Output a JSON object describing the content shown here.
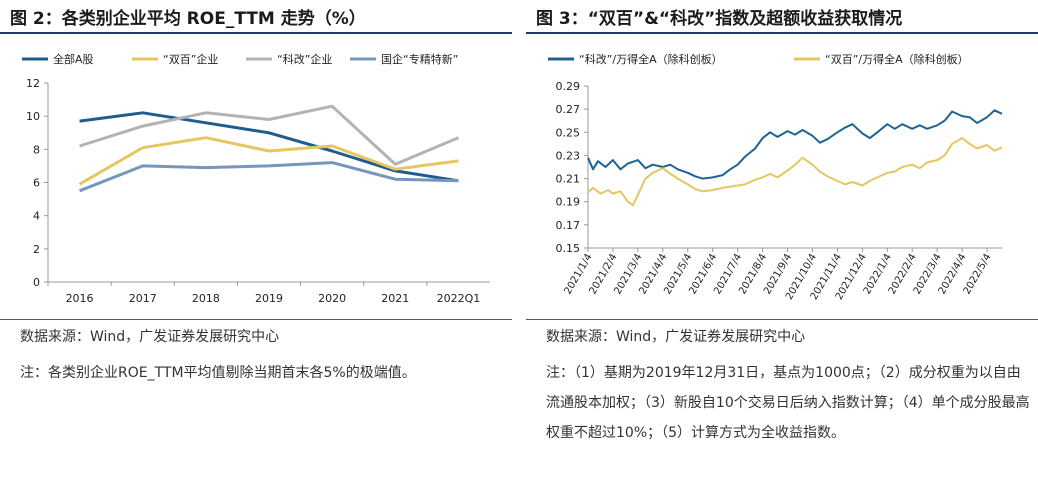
{
  "left": {
    "title": "图 2：各类别企业平均 ROE_TTM 走势（%）",
    "source": "数据来源：Wind，广发证券发展研究中心",
    "note": "注：各类别企业ROE_TTM平均值剔除当期首末各5%的极端值。"
  },
  "right": {
    "title": "图 3：“双百”&“科改”指数及超额收益获取情况",
    "source": "数据来源：Wind，广发证券发展研究中心",
    "note": "注：（1）基期为2019年12月31日，基点为1000点；（2）成分权重为以自由流通股本加权；（3）新股自10个交易日后纳入指数计算；（4）单个成分股最高权重不超过10%；（5）计算方式为全收益指数。"
  },
  "chart_data": [
    {
      "type": "line",
      "categories": [
        "2016",
        "2017",
        "2018",
        "2019",
        "2020",
        "2021",
        "2022Q1"
      ],
      "ylim": [
        0,
        12
      ],
      "yticks": [
        0,
        2,
        4,
        6,
        8,
        10,
        12
      ],
      "grid": false,
      "legend_position": "top",
      "series": [
        {
          "name": "全部A股",
          "color": "#1f5d8f",
          "values": [
            9.7,
            10.2,
            9.6,
            9.0,
            7.9,
            6.7,
            6.1
          ]
        },
        {
          "name": "“双百”企业",
          "color": "#e6c661",
          "values": [
            5.9,
            8.1,
            8.7,
            7.9,
            8.2,
            6.8,
            7.3
          ]
        },
        {
          "name": "“科改”企业",
          "color": "#b3b3b3",
          "values": [
            8.2,
            9.4,
            10.2,
            9.8,
            10.6,
            7.1,
            8.7
          ]
        },
        {
          "name": "国企“专精特新”",
          "color": "#7796bd",
          "values": [
            5.5,
            7.0,
            6.9,
            7.0,
            7.2,
            6.2,
            6.1
          ]
        }
      ]
    },
    {
      "type": "line",
      "x_labels": [
        "2021/1/4",
        "2021/2/4",
        "2021/3/4",
        "2021/4/4",
        "2021/5/4",
        "2021/6/4",
        "2021/7/4",
        "2021/8/4",
        "2021/9/4",
        "2021/10/4",
        "2021/11/4",
        "2021/12/4",
        "2022/1/4",
        "2022/2/4",
        "2022/3/4",
        "2022/4/4",
        "2022/5/4"
      ],
      "x_range_months": [
        0,
        16.6
      ],
      "ylim": [
        0.15,
        0.29
      ],
      "yticks": [
        "0.15",
        "0.17",
        "0.19",
        "0.21",
        "0.23",
        "0.25",
        "0.27",
        "0.29"
      ],
      "grid": false,
      "legend_position": "top",
      "series": [
        {
          "name": "“科改”/万得全A（除科创板）",
          "color": "#1f6394",
          "points": [
            [
              0,
              0.228
            ],
            [
              0.2,
              0.218
            ],
            [
              0.4,
              0.225
            ],
            [
              0.7,
              0.22
            ],
            [
              1.0,
              0.226
            ],
            [
              1.3,
              0.218
            ],
            [
              1.6,
              0.223
            ],
            [
              2.0,
              0.226
            ],
            [
              2.3,
              0.219
            ],
            [
              2.6,
              0.222
            ],
            [
              3.0,
              0.22
            ],
            [
              3.3,
              0.222
            ],
            [
              3.6,
              0.218
            ],
            [
              4.0,
              0.215
            ],
            [
              4.3,
              0.212
            ],
            [
              4.6,
              0.21
            ],
            [
              5.0,
              0.211
            ],
            [
              5.4,
              0.213
            ],
            [
              5.7,
              0.218
            ],
            [
              6.0,
              0.222
            ],
            [
              6.3,
              0.229
            ],
            [
              6.7,
              0.236
            ],
            [
              7.0,
              0.245
            ],
            [
              7.3,
              0.25
            ],
            [
              7.6,
              0.246
            ],
            [
              8.0,
              0.251
            ],
            [
              8.3,
              0.248
            ],
            [
              8.6,
              0.252
            ],
            [
              9.0,
              0.247
            ],
            [
              9.3,
              0.241
            ],
            [
              9.6,
              0.244
            ],
            [
              10.0,
              0.25
            ],
            [
              10.3,
              0.254
            ],
            [
              10.6,
              0.257
            ],
            [
              11.0,
              0.249
            ],
            [
              11.3,
              0.245
            ],
            [
              11.6,
              0.25
            ],
            [
              12.0,
              0.257
            ],
            [
              12.3,
              0.253
            ],
            [
              12.6,
              0.257
            ],
            [
              13.0,
              0.253
            ],
            [
              13.3,
              0.256
            ],
            [
              13.6,
              0.253
            ],
            [
              14.0,
              0.256
            ],
            [
              14.3,
              0.26
            ],
            [
              14.6,
              0.268
            ],
            [
              15.0,
              0.264
            ],
            [
              15.3,
              0.263
            ],
            [
              15.6,
              0.258
            ],
            [
              16.0,
              0.263
            ],
            [
              16.3,
              0.269
            ],
            [
              16.6,
              0.266
            ]
          ]
        },
        {
          "name": "“双百”/万得全A（除科创板）",
          "color": "#e6c661",
          "points": [
            [
              0,
              0.198
            ],
            [
              0.2,
              0.202
            ],
            [
              0.5,
              0.197
            ],
            [
              0.8,
              0.2
            ],
            [
              1.0,
              0.197
            ],
            [
              1.3,
              0.199
            ],
            [
              1.6,
              0.19
            ],
            [
              1.8,
              0.187
            ],
            [
              2.0,
              0.196
            ],
            [
              2.3,
              0.21
            ],
            [
              2.6,
              0.215
            ],
            [
              3.0,
              0.219
            ],
            [
              3.3,
              0.214
            ],
            [
              3.6,
              0.21
            ],
            [
              4.0,
              0.205
            ],
            [
              4.3,
              0.201
            ],
            [
              4.6,
              0.199
            ],
            [
              5.0,
              0.2
            ],
            [
              5.4,
              0.202
            ],
            [
              5.7,
              0.203
            ],
            [
              6.0,
              0.204
            ],
            [
              6.3,
              0.205
            ],
            [
              6.7,
              0.209
            ],
            [
              7.0,
              0.211
            ],
            [
              7.3,
              0.214
            ],
            [
              7.6,
              0.211
            ],
            [
              8.0,
              0.217
            ],
            [
              8.3,
              0.222
            ],
            [
              8.6,
              0.228
            ],
            [
              9.0,
              0.222
            ],
            [
              9.3,
              0.216
            ],
            [
              9.6,
              0.212
            ],
            [
              10.0,
              0.208
            ],
            [
              10.3,
              0.205
            ],
            [
              10.6,
              0.207
            ],
            [
              11.0,
              0.204
            ],
            [
              11.3,
              0.208
            ],
            [
              11.6,
              0.211
            ],
            [
              12.0,
              0.215
            ],
            [
              12.3,
              0.216
            ],
            [
              12.6,
              0.22
            ],
            [
              13.0,
              0.222
            ],
            [
              13.3,
              0.219
            ],
            [
              13.6,
              0.224
            ],
            [
              14.0,
              0.226
            ],
            [
              14.3,
              0.23
            ],
            [
              14.6,
              0.24
            ],
            [
              15.0,
              0.245
            ],
            [
              15.3,
              0.24
            ],
            [
              15.6,
              0.236
            ],
            [
              16.0,
              0.239
            ],
            [
              16.3,
              0.234
            ],
            [
              16.6,
              0.237
            ]
          ]
        }
      ]
    }
  ]
}
